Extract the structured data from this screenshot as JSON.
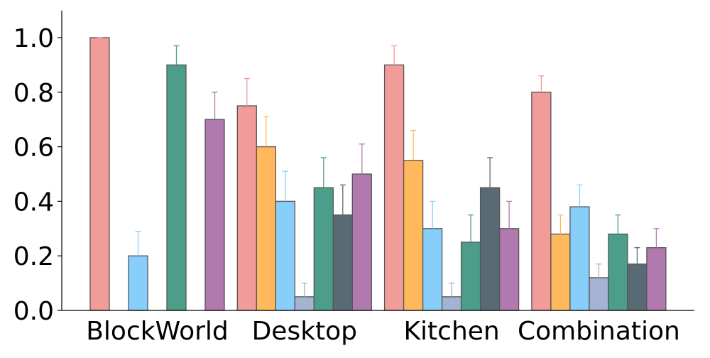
{
  "chart_data": {
    "type": "bar",
    "title": "",
    "xlabel": "",
    "ylabel": "",
    "ylim": [
      0,
      1.1
    ],
    "yticks": [
      "0.0",
      "0.2",
      "0.4",
      "0.6",
      "0.8",
      "1.0"
    ],
    "grid": false,
    "legend": "none",
    "categories": [
      "BlockWorld",
      "Desktop",
      "Kitchen",
      "Combination"
    ],
    "series": [
      {
        "color": "#F19C99",
        "values": [
          1.0,
          0.75,
          0.9,
          0.8
        ],
        "err_upper": [
          1.0,
          0.85,
          0.97,
          0.86
        ]
      },
      {
        "color": "#FFB85C",
        "values": [
          0.0,
          0.6,
          0.55,
          0.28
        ],
        "err_upper": [
          0.0,
          0.71,
          0.66,
          0.35
        ]
      },
      {
        "color": "#87CEFA",
        "values": [
          0.2,
          0.4,
          0.3,
          0.38
        ],
        "err_upper": [
          0.29,
          0.51,
          0.4,
          0.46
        ]
      },
      {
        "color": "#A3B3D1",
        "values": [
          0.0,
          0.05,
          0.05,
          0.12
        ],
        "err_upper": [
          0.0,
          0.1,
          0.1,
          0.17
        ]
      },
      {
        "color": "#4C9E8A",
        "values": [
          0.9,
          0.45,
          0.25,
          0.28
        ],
        "err_upper": [
          0.97,
          0.56,
          0.35,
          0.35
        ]
      },
      {
        "color": "#5A6A74",
        "values": [
          0.0,
          0.35,
          0.45,
          0.17
        ],
        "err_upper": [
          0.0,
          0.46,
          0.56,
          0.23
        ]
      },
      {
        "color": "#B07AAE",
        "values": [
          0.7,
          0.5,
          0.3,
          0.23
        ],
        "err_upper": [
          0.8,
          0.61,
          0.4,
          0.3
        ]
      }
    ]
  }
}
